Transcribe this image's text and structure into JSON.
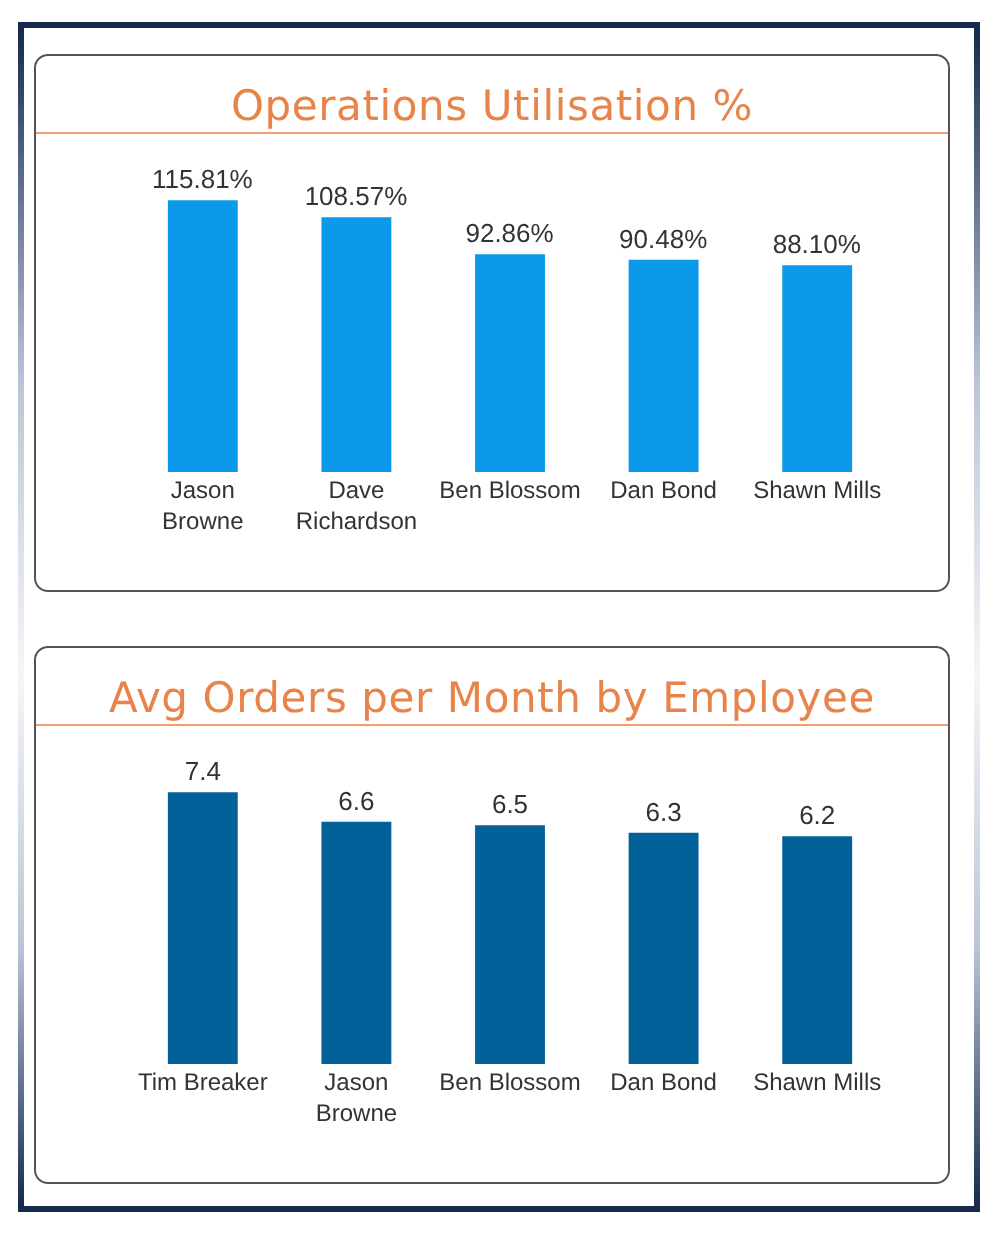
{
  "chart_data": [
    {
      "type": "bar",
      "title": "Operations Utilisation %",
      "categories": [
        "Jason Browne",
        "Dave Richardson",
        "Ben Blossom",
        "Dan Bond",
        "Shawn Mills"
      ],
      "values": [
        115.81,
        108.57,
        92.86,
        90.48,
        88.1
      ],
      "value_labels": [
        "115.81%",
        "108.57%",
        "92.86%",
        "90.48%",
        "88.10%"
      ],
      "color": "#0a9ae9"
    },
    {
      "type": "bar",
      "title": "Avg Orders per Month by Employee",
      "categories": [
        "Tim Breaker",
        "Jason Browne",
        "Ben Blossom",
        "Dan Bond",
        "Shawn Mills"
      ],
      "values": [
        7.4,
        6.6,
        6.5,
        6.3,
        6.2
      ],
      "data_labels": true,
      "color": "#03619a"
    }
  ]
}
